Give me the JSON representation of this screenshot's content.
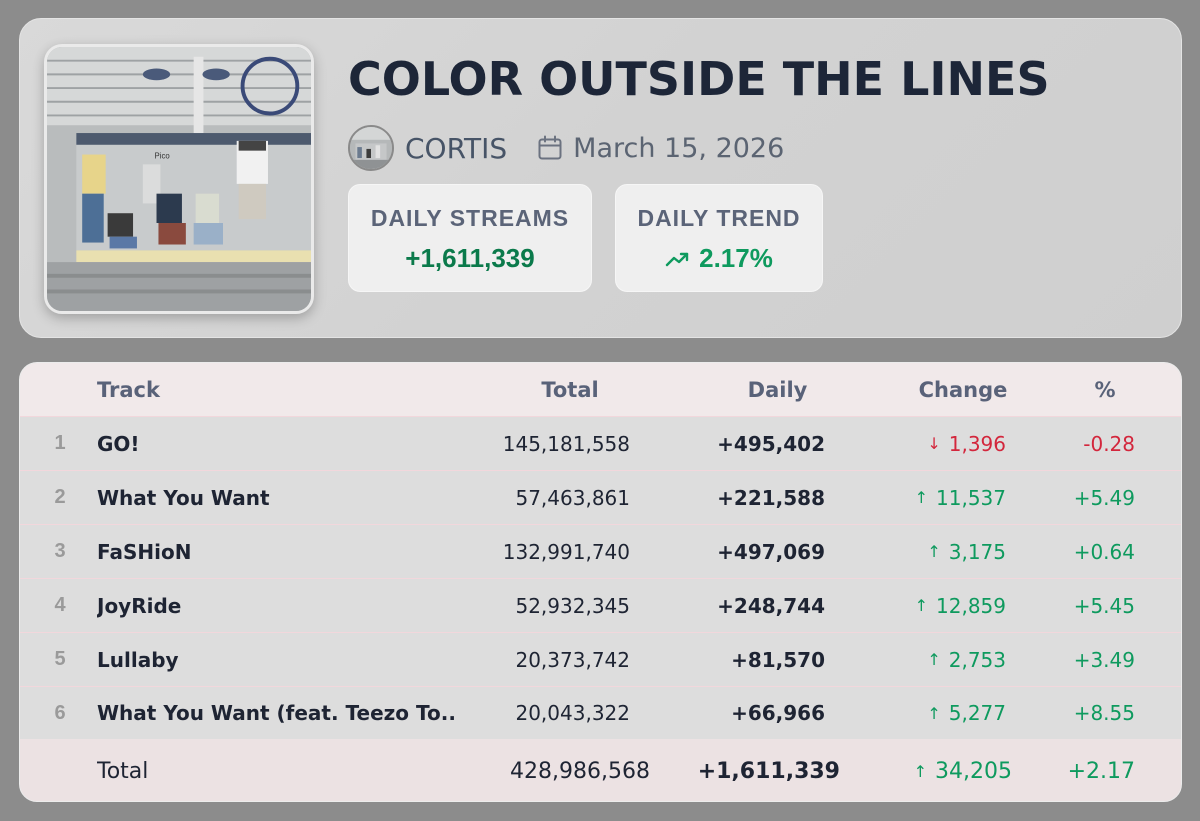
{
  "album": {
    "title": "COLOR OUTSIDE THE LINES",
    "artist": "CORTIS",
    "release_date": "March 15, 2026",
    "cover_sign_text": "Pico"
  },
  "stats": {
    "streams_label": "DAILY STREAMS",
    "streams_value": "+1,611,339",
    "trend_label": "DAILY TREND",
    "trend_value": "2.17%"
  },
  "table": {
    "headers": {
      "track": "Track",
      "total": "Total",
      "daily": "Daily",
      "change": "Change",
      "pct": "%"
    },
    "rows": [
      {
        "rank": "1",
        "track": "GO!",
        "total": "145,181,558",
        "daily": "+495,402",
        "change": "1,396",
        "direction": "down",
        "pct": "-0.28"
      },
      {
        "rank": "2",
        "track": "What You Want",
        "total": "57,463,861",
        "daily": "+221,588",
        "change": "11,537",
        "direction": "up",
        "pct": "+5.49"
      },
      {
        "rank": "3",
        "track": "FaSHioN",
        "total": "132,991,740",
        "daily": "+497,069",
        "change": "3,175",
        "direction": "up",
        "pct": "+0.64"
      },
      {
        "rank": "4",
        "track": "JoyRide",
        "total": "52,932,345",
        "daily": "+248,744",
        "change": "12,859",
        "direction": "up",
        "pct": "+5.45"
      },
      {
        "rank": "5",
        "track": "Lullaby",
        "total": "20,373,742",
        "daily": "+81,570",
        "change": "2,753",
        "direction": "up",
        "pct": "+3.49"
      },
      {
        "rank": "6",
        "track": "What You Want (feat. Teezo To...",
        "total": "20,043,322",
        "daily": "+66,966",
        "change": "5,277",
        "direction": "up",
        "pct": "+8.55"
      }
    ],
    "footer": {
      "label": "Total",
      "total": "428,986,568",
      "daily": "+1,611,339",
      "change": "34,205",
      "direction": "up",
      "pct": "+2.17"
    }
  },
  "colors": {
    "up": "#0e9a5e",
    "down": "#d3263c",
    "title": "#1d2638"
  },
  "icons": {
    "calendar": "calendar-icon",
    "trend": "trending-up-icon",
    "up_arrow": "arrow-up-icon",
    "down_arrow": "arrow-down-icon"
  }
}
